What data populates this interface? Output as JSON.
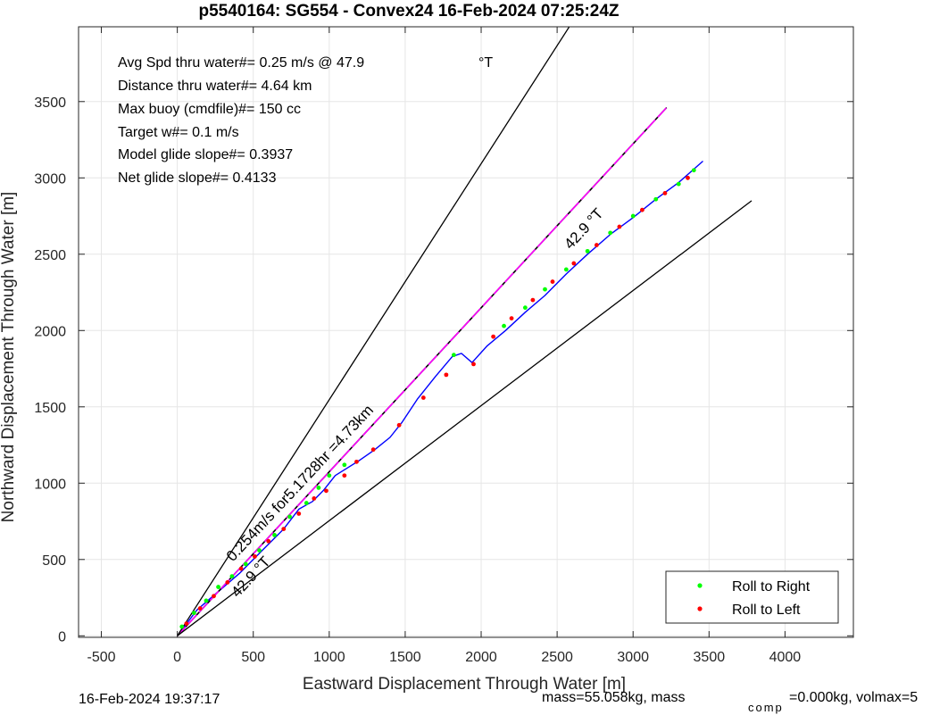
{
  "chart_data": {
    "type": "line",
    "title": "p5540164: SG554 - Convex24 16-Feb-2024 07:25:24Z",
    "xlabel": "Eastward Displacement Through Water [m]",
    "ylabel": "Northward Displacement Through Water [m]",
    "xlim": [
      -650,
      4450
    ],
    "ylim": [
      -10,
      3990
    ],
    "xticks": [
      -500,
      0,
      500,
      1000,
      1500,
      2000,
      2500,
      3000,
      3500,
      4000
    ],
    "yticks": [
      0,
      500,
      1000,
      1500,
      2000,
      2500,
      3000,
      3500
    ],
    "grid": true,
    "legend_position": "bottom-right",
    "legend": [
      {
        "label": "Roll to Right",
        "color": "#00ff00"
      },
      {
        "label": "Roll to Left",
        "color": "#ff0000"
      }
    ],
    "annotations": [
      "Avg Spd thru water#=  0.25 m/s @  47.9",
      "°T",
      "Distance thru water#=  4.64 km",
      "Max buoy (cmdfile)#= 150 cc",
      "Target w#= 0.1 m/s",
      "Model glide slope#= 0.3937",
      "Net glide slope#= 0.4133"
    ],
    "rotated_labels": {
      "track_heading": "42.9 °T",
      "speed_summary": "0.254m/s for5.1728hr =4.73km",
      "wedge_heading": "42.9 °T"
    },
    "series": [
      {
        "name": "",
        "kind": "track",
        "color": "#0000ff",
        "x": [
          0,
          130,
          270,
          410,
          560,
          700,
          800,
          890,
          960,
          1040,
          1120,
          1200,
          1300,
          1400,
          1480,
          1580,
          1700,
          1810,
          1870,
          1940,
          2040,
          2160,
          2290,
          2420,
          2560,
          2700,
          2850,
          3000,
          3150,
          3300,
          3460
        ],
        "y": [
          0,
          170,
          290,
          410,
          560,
          700,
          830,
          880,
          950,
          1050,
          1100,
          1150,
          1220,
          1300,
          1400,
          1550,
          1700,
          1830,
          1850,
          1790,
          1900,
          2000,
          2120,
          2230,
          2370,
          2500,
          2630,
          2740,
          2860,
          2970,
          3110
        ]
      },
      {
        "name": "",
        "kind": "reference-line",
        "color": "#ff00ff",
        "x": [
          0,
          3220
        ],
        "y": [
          0,
          3460
        ]
      },
      {
        "name": "",
        "kind": "wedge-line",
        "color": "#000000",
        "x": [
          0,
          2580
        ],
        "y": [
          0,
          3990
        ]
      },
      {
        "name": "",
        "kind": "wedge-line",
        "color": "#000000",
        "x": [
          0,
          3780
        ],
        "y": [
          0,
          2850
        ]
      }
    ],
    "roll_right": [
      [
        30,
        60
      ],
      [
        110,
        150
      ],
      [
        190,
        230
      ],
      [
        270,
        320
      ],
      [
        360,
        390
      ],
      [
        450,
        470
      ],
      [
        540,
        560
      ],
      [
        640,
        660
      ],
      [
        740,
        780
      ],
      [
        850,
        870
      ],
      [
        930,
        970
      ],
      [
        1000,
        1050
      ],
      [
        1100,
        1120
      ],
      [
        1820,
        1840
      ],
      [
        2150,
        2030
      ],
      [
        2290,
        2150
      ],
      [
        2420,
        2270
      ],
      [
        2560,
        2400
      ],
      [
        2700,
        2520
      ],
      [
        2850,
        2640
      ],
      [
        3000,
        2750
      ],
      [
        3150,
        2860
      ],
      [
        3300,
        2960
      ],
      [
        3400,
        3050
      ]
    ],
    "roll_left": [
      [
        60,
        80
      ],
      [
        150,
        180
      ],
      [
        240,
        260
      ],
      [
        330,
        350
      ],
      [
        420,
        440
      ],
      [
        510,
        520
      ],
      [
        600,
        620
      ],
      [
        700,
        700
      ],
      [
        800,
        800
      ],
      [
        900,
        900
      ],
      [
        980,
        950
      ],
      [
        1100,
        1050
      ],
      [
        1180,
        1140
      ],
      [
        1290,
        1220
      ],
      [
        1460,
        1380
      ],
      [
        1620,
        1560
      ],
      [
        1770,
        1710
      ],
      [
        1950,
        1780
      ],
      [
        2080,
        1960
      ],
      [
        2200,
        2080
      ],
      [
        2340,
        2200
      ],
      [
        2470,
        2320
      ],
      [
        2610,
        2440
      ],
      [
        2760,
        2560
      ],
      [
        2910,
        2680
      ],
      [
        3060,
        2790
      ],
      [
        3210,
        2900
      ],
      [
        3360,
        3000
      ]
    ]
  },
  "footer": {
    "timestamp": "16-Feb-2024 19:37:17",
    "mass_text": "mass=55.058kg, mass",
    "comp_sub": "comp",
    "volmax_text": "=0.000kg, volmax=5"
  }
}
